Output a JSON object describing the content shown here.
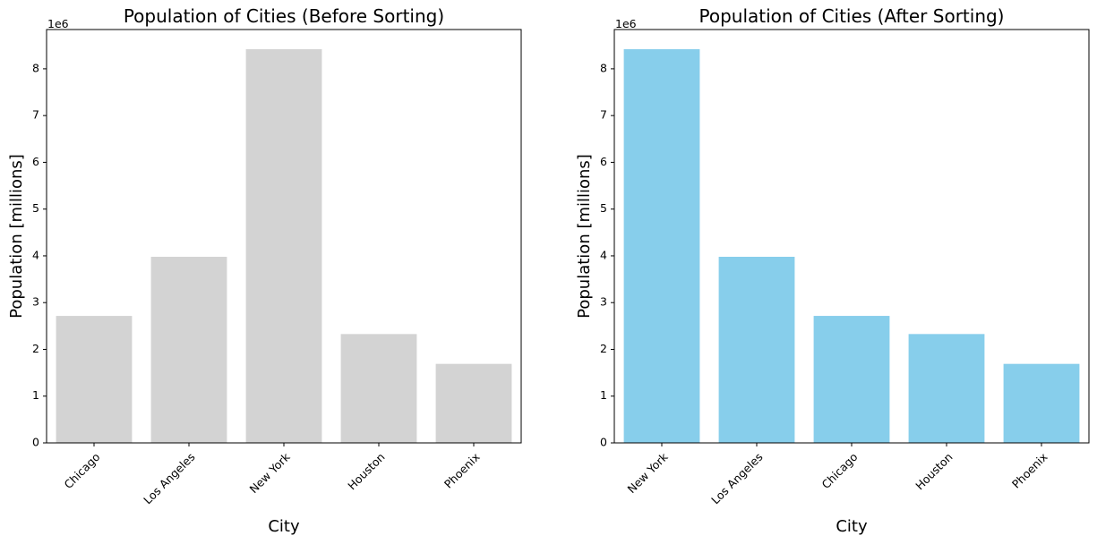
{
  "chart_data": [
    {
      "type": "bar",
      "title": "Population of Cities (Before Sorting)",
      "xlabel": "City",
      "ylabel": "Population [millions]",
      "offset_text": "1e6",
      "categories": [
        "Chicago",
        "Los Angeles",
        "New York",
        "Houston",
        "Phoenix"
      ],
      "values": [
        2716000,
        3980000,
        8419000,
        2328000,
        1690000
      ],
      "ylim": [
        0,
        8840000
      ],
      "yticks": [
        0,
        1000000,
        2000000,
        3000000,
        4000000,
        5000000,
        6000000,
        7000000,
        8000000
      ],
      "ytick_labels": [
        "0",
        "1",
        "2",
        "3",
        "4",
        "5",
        "6",
        "7",
        "8"
      ],
      "grid": false,
      "bar_color": "#d3d3d3"
    },
    {
      "type": "bar",
      "title": "Population of Cities (After Sorting)",
      "xlabel": "City",
      "ylabel": "Population [millions]",
      "offset_text": "1e6",
      "categories": [
        "New York",
        "Los Angeles",
        "Chicago",
        "Houston",
        "Phoenix"
      ],
      "values": [
        8419000,
        3980000,
        2716000,
        2328000,
        1690000
      ],
      "ylim": [
        0,
        8840000
      ],
      "yticks": [
        0,
        1000000,
        2000000,
        3000000,
        4000000,
        5000000,
        6000000,
        7000000,
        8000000
      ],
      "ytick_labels": [
        "0",
        "1",
        "2",
        "3",
        "4",
        "5",
        "6",
        "7",
        "8"
      ],
      "grid": false,
      "bar_color": "#87ceeb"
    }
  ]
}
